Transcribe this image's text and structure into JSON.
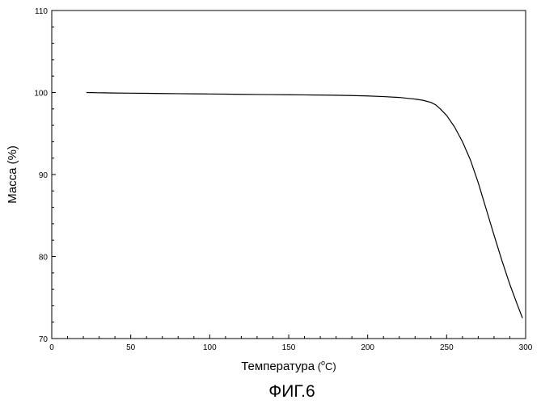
{
  "chart_data": {
    "type": "line",
    "title": "",
    "xlabel": "Температура",
    "xlabel_unit_open": " (",
    "xlabel_unit_sup": "o",
    "xlabel_unit_main": "C)",
    "ylabel": "Масса (%)",
    "caption": "ФИГ.6",
    "xlim": [
      0,
      300
    ],
    "ylim": [
      70,
      110
    ],
    "x_ticks": [
      "0",
      "50",
      "100",
      "150",
      "200",
      "250",
      "300"
    ],
    "y_ticks": [
      "70",
      "80",
      "90",
      "100",
      "110"
    ],
    "grid": false,
    "series": [
      {
        "x": [
          22,
          30,
          40,
          50,
          60,
          70,
          80,
          90,
          100,
          110,
          120,
          130,
          140,
          150,
          160,
          170,
          180,
          190,
          200,
          210,
          220,
          230,
          235,
          240,
          243,
          246,
          250,
          255,
          260,
          265,
          270,
          275,
          280,
          285,
          290,
          295,
          298
        ],
        "y": [
          100.0,
          99.97,
          99.94,
          99.92,
          99.9,
          99.88,
          99.86,
          99.84,
          99.82,
          99.8,
          99.78,
          99.76,
          99.75,
          99.73,
          99.71,
          99.69,
          99.67,
          99.63,
          99.58,
          99.5,
          99.4,
          99.2,
          99.05,
          98.8,
          98.5,
          98.0,
          97.2,
          95.8,
          94.0,
          91.8,
          89.0,
          85.8,
          82.6,
          79.5,
          76.6,
          74.0,
          72.5
        ]
      }
    ]
  }
}
